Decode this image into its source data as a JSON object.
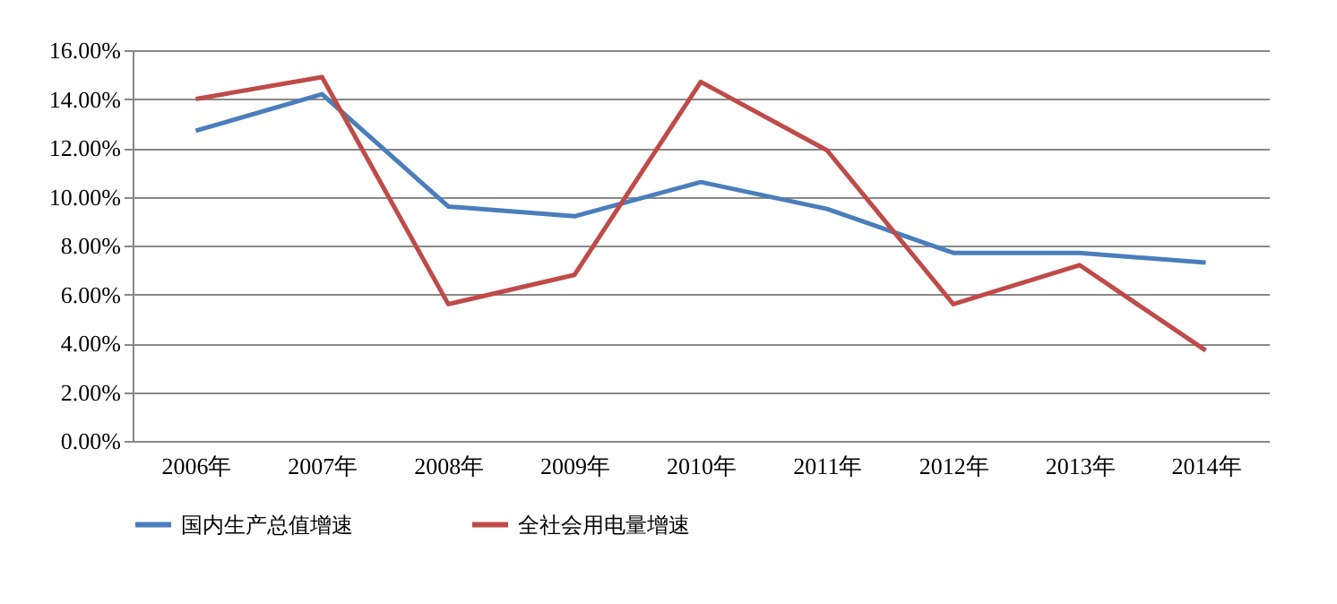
{
  "chart_data": {
    "type": "line",
    "categories": [
      "2006年",
      "2007年",
      "2008年",
      "2009年",
      "2010年",
      "2011年",
      "2012年",
      "2013年",
      "2014年"
    ],
    "series": [
      {
        "name": "国内生产总值增速",
        "color": "#4a7ebb",
        "values": [
          12.7,
          14.2,
          9.6,
          9.2,
          10.6,
          9.5,
          7.7,
          7.7,
          7.3
        ]
      },
      {
        "name": "全社会用电量增速",
        "color": "#be4b48",
        "values": [
          14.0,
          14.9,
          5.6,
          6.8,
          14.7,
          11.9,
          5.6,
          7.2,
          3.7
        ]
      }
    ],
    "ylim": [
      0,
      16
    ],
    "yticks": [
      {
        "value": 0,
        "label": "0.00%"
      },
      {
        "value": 2,
        "label": "2.00%"
      },
      {
        "value": 4,
        "label": "4.00%"
      },
      {
        "value": 6,
        "label": "6.00%"
      },
      {
        "value": 8,
        "label": "8.00%"
      },
      {
        "value": 10,
        "label": "10.00%"
      },
      {
        "value": 12,
        "label": "12.00%"
      },
      {
        "value": 14,
        "label": "14.00%"
      },
      {
        "value": 16,
        "label": "16.00%"
      }
    ],
    "grid": "y",
    "legend": "bottom",
    "marker": "none",
    "line_style": "solid"
  }
}
